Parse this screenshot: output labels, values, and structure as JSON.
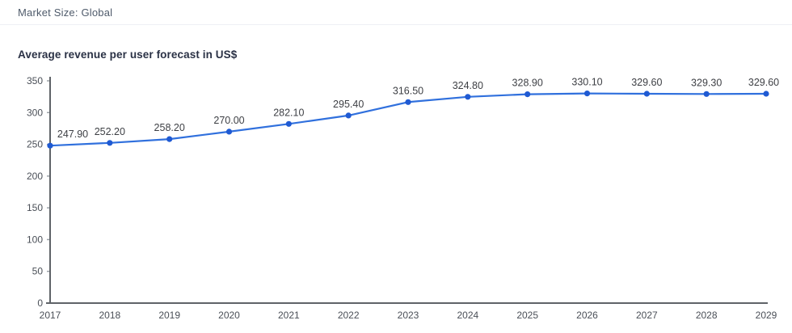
{
  "header": {
    "market_size_label": "Market Size: Global"
  },
  "chart": {
    "title": "Average revenue per user forecast in US$"
  },
  "colors": {
    "line": "#3070dd",
    "marker": "#1f5ad3",
    "axis": "#5f6368",
    "tick_text": "#4a4f57",
    "data_label_text": "#3d3f44",
    "title_text": "#2a3145",
    "subtle_text": "#4f5b6b"
  },
  "chart_data": {
    "type": "line",
    "title": "Average revenue per user forecast in US$",
    "categories": [
      "2017",
      "2018",
      "2019",
      "2020",
      "2021",
      "2022",
      "2023",
      "2024",
      "2025",
      "2026",
      "2027",
      "2028",
      "2029"
    ],
    "values": [
      247.9,
      252.2,
      258.2,
      270.0,
      282.1,
      295.4,
      316.5,
      324.8,
      328.9,
      330.1,
      329.6,
      329.3,
      329.6
    ],
    "data_labels": [
      "247.90",
      "252.20",
      "258.20",
      "270.00",
      "282.10",
      "295.40",
      "316.50",
      "324.80",
      "328.90",
      "330.10",
      "329.60",
      "329.30",
      "329.60"
    ],
    "xlabel": "",
    "ylabel": "",
    "ylim": [
      0,
      350
    ],
    "ytick_step": 50,
    "grid": false,
    "legend": false,
    "marker": "circle"
  }
}
